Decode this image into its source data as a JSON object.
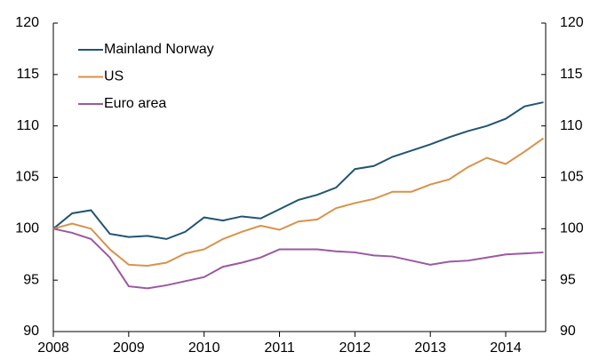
{
  "chart_data": {
    "type": "line",
    "x": [
      2008,
      2008.25,
      2008.5,
      2008.75,
      2009,
      2009.25,
      2009.5,
      2009.75,
      2010,
      2010.25,
      2010.5,
      2010.75,
      2011,
      2011.25,
      2011.5,
      2011.75,
      2012,
      2012.25,
      2012.5,
      2012.75,
      2013,
      2013.25,
      2013.5,
      2013.75,
      2014,
      2014.25,
      2014.5
    ],
    "series": [
      {
        "name": "Mainland Norway",
        "color": "#215570",
        "values": [
          100,
          101.5,
          101.8,
          99.5,
          99.2,
          99.3,
          99.0,
          99.7,
          101.1,
          100.8,
          101.2,
          101.0,
          101.9,
          102.8,
          103.3,
          104.0,
          105.8,
          106.1,
          107.0,
          107.6,
          108.2,
          108.9,
          109.5,
          110.0,
          110.7,
          111.9,
          112.3
        ]
      },
      {
        "name": "US",
        "color": "#d9924a",
        "values": [
          100,
          100.5,
          100.0,
          98.0,
          96.5,
          96.4,
          96.7,
          97.6,
          98.0,
          99.0,
          99.7,
          100.3,
          99.9,
          100.7,
          100.9,
          102.0,
          102.5,
          102.9,
          103.6,
          103.6,
          104.3,
          104.8,
          106.0,
          106.9,
          106.3,
          107.5,
          108.8
        ]
      },
      {
        "name": "Euro area",
        "color": "#9b59a0",
        "values": [
          100,
          99.6,
          99.0,
          97.2,
          94.4,
          94.2,
          94.5,
          94.9,
          95.3,
          96.3,
          96.7,
          97.2,
          98.0,
          98.0,
          98.0,
          97.8,
          97.7,
          97.4,
          97.3,
          96.9,
          96.5,
          96.8,
          96.9,
          97.2,
          97.5,
          97.6,
          97.7
        ]
      }
    ],
    "xlim": [
      2008,
      2014.53
    ],
    "xticks": [
      2008,
      2009,
      2010,
      2011,
      2012,
      2013,
      2014
    ],
    "ylim": [
      90,
      120
    ],
    "yticks": [
      90,
      95,
      100,
      105,
      110,
      115,
      120
    ],
    "y2lim": [
      90,
      120
    ],
    "y2ticks": [
      90,
      95,
      100,
      105,
      110,
      115,
      120
    ],
    "legend": "upper left"
  }
}
